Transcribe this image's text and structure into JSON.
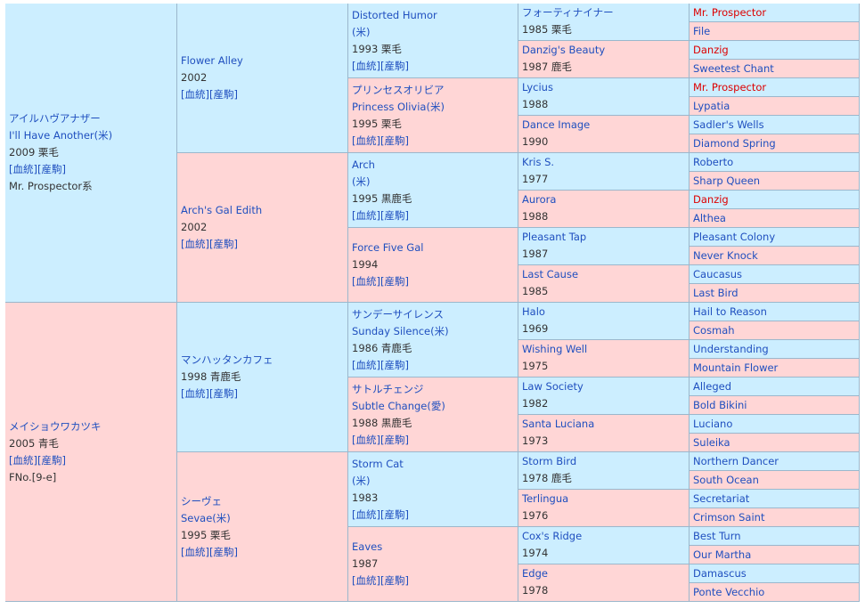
{
  "pedigree": {
    "sire": {
      "ja": "アイルハヴアナザー",
      "en": "I'll Have Another(米)",
      "info": "2009 栗毛",
      "line": "Mr. Prospector系",
      "sire": {
        "name": "Flower Alley",
        "info": "2002",
        "sire": {
          "name": "Distorted Humor",
          "origin": "(米)",
          "info": "1993 栗毛",
          "sire": {
            "name": "フォーティナイナー",
            "info": "1985 栗毛",
            "sire": "Mr. Prospector",
            "dam": "File"
          },
          "dam": {
            "name": "Danzig's Beauty",
            "info": "1987 鹿毛",
            "sire": "Danzig",
            "dam": "Sweetest Chant"
          }
        },
        "dam": {
          "ja": "プリンセスオリビア",
          "en": "Princess Olivia(米)",
          "info": "1995 栗毛",
          "sire": {
            "name": "Lycius",
            "info": "1988",
            "sire": "Mr. Prospector",
            "dam": "Lypatia"
          },
          "dam": {
            "name": "Dance Image",
            "info": "1990",
            "sire": "Sadler's Wells",
            "dam": "Diamond Spring"
          }
        }
      },
      "dam": {
        "name": "Arch's Gal Edith",
        "info": "2002",
        "sire": {
          "name": "Arch",
          "origin": "(米)",
          "info": "1995 黒鹿毛",
          "sire": {
            "name": "Kris S.",
            "info": "1977",
            "sire": "Roberto",
            "dam": "Sharp Queen"
          },
          "dam": {
            "name": "Aurora",
            "info": "1988",
            "sire": "Danzig",
            "dam": "Althea"
          }
        },
        "dam": {
          "name": "Force Five Gal",
          "info": "1994",
          "sire": {
            "name": "Pleasant Tap",
            "info": "1987",
            "sire": "Pleasant Colony",
            "dam": "Never Knock"
          },
          "dam": {
            "name": "Last Cause",
            "info": "1985",
            "sire": "Caucasus",
            "dam": "Last Bird"
          }
        }
      }
    },
    "dam": {
      "ja": "メイショウワカツキ",
      "info": "2005 青毛",
      "family": "FNo.[9-e]",
      "sire": {
        "ja": "マンハッタンカフェ",
        "info": "1998 青鹿毛",
        "sire": {
          "ja": "サンデーサイレンス",
          "en": "Sunday Silence(米)",
          "info": "1986 青鹿毛",
          "sire": {
            "name": "Halo",
            "info": "1969",
            "sire": "Hail to Reason",
            "dam": "Cosmah"
          },
          "dam": {
            "name": "Wishing Well",
            "info": "1975",
            "sire": "Understanding",
            "dam": "Mountain Flower"
          }
        },
        "dam": {
          "ja": "サトルチェンジ",
          "en": "Subtle Change(愛)",
          "info": "1988 黒鹿毛",
          "sire": {
            "name": "Law Society",
            "info": "1982",
            "sire": "Alleged",
            "dam": "Bold Bikini"
          },
          "dam": {
            "name": "Santa Luciana",
            "info": "1973",
            "sire": "Luciano",
            "dam": "Suleika"
          }
        }
      },
      "dam": {
        "ja": "シーヴェ",
        "en": "Sevae(米)",
        "info": "1995 栗毛",
        "sire": {
          "name": "Storm Cat",
          "origin": "(米)",
          "info": "1983",
          "sire": {
            "name": "Storm Bird",
            "info": "1978 鹿毛",
            "sire": "Northern Dancer",
            "dam": "South Ocean"
          },
          "dam": {
            "name": "Terlingua",
            "info": "1976",
            "sire": "Secretariat",
            "dam": "Crimson Saint"
          }
        },
        "dam": {
          "name": "Eaves",
          "info": "1987",
          "sire": {
            "name": "Cox's Ridge",
            "info": "1974",
            "sire": "Best Turn",
            "dam": "Our Martha"
          },
          "dam": {
            "name": "Edge",
            "info": "1978",
            "sire": "Damascus",
            "dam": "Ponte Vecchio"
          }
        }
      }
    }
  },
  "links": {
    "bloodline": "[血統]",
    "foal": "[産駒]"
  },
  "highlighted": [
    "Mr. Prospector",
    "Danzig"
  ],
  "colors": {
    "male_bg": "#cceeff",
    "female_bg": "#ffd6d6",
    "border": "#9bb7cc",
    "link": "#1f4fbf",
    "highlight": "#dd0000",
    "text": "#333333"
  }
}
